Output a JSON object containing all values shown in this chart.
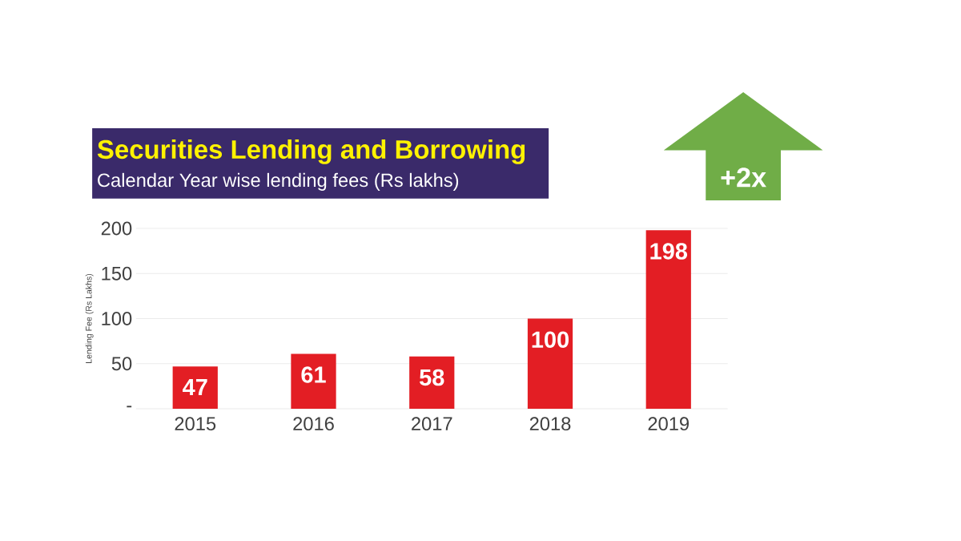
{
  "chart_data": {
    "type": "bar",
    "title": "Securities Lending and Borrowing",
    "subtitle": "Calendar Year wise lending fees (Rs lakhs)",
    "ylabel": "Lending Fee (Rs Lakhs)",
    "categories": [
      "2015",
      "2016",
      "2017",
      "2018",
      "2019"
    ],
    "values": [
      47,
      61,
      58,
      100,
      198
    ],
    "color": "#e31e24",
    "ylim": [
      0,
      200
    ],
    "yticks": [
      {
        "value": 0,
        "label": "-"
      },
      50,
      100,
      150,
      200
    ],
    "grid": "y",
    "data_labels": true,
    "annotations": [
      "+2x"
    ]
  }
}
